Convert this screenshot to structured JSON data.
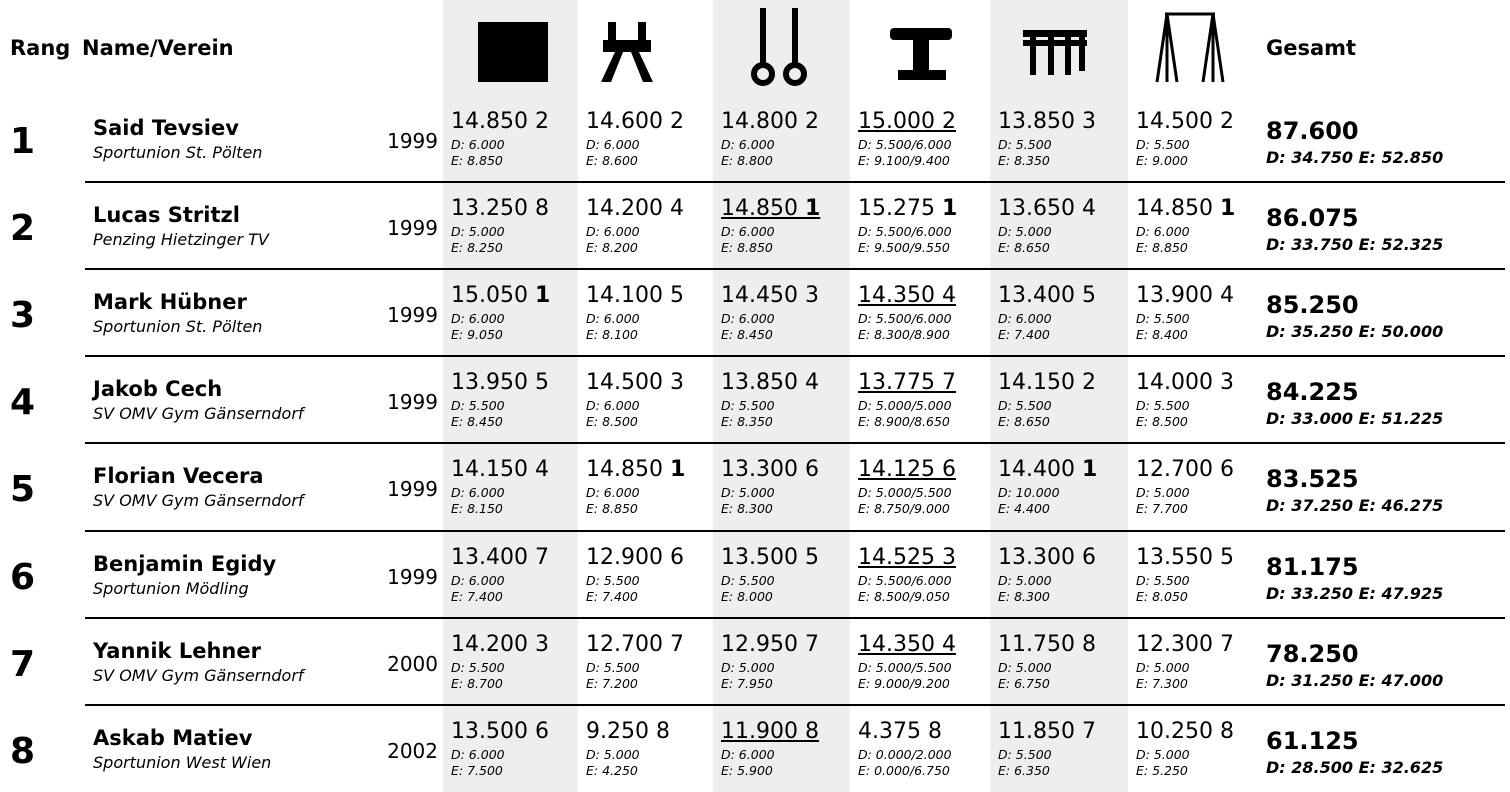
{
  "header": {
    "rank": "Rang",
    "name": "Name/Verein",
    "total": "Gesamt"
  },
  "rows": [
    {
      "rank": "1",
      "name": "Said Tevsiev",
      "club": "Sportunion St. Pölten",
      "year": "1999",
      "scores": [
        {
          "score": "14.850",
          "place": "2",
          "d": "D: 6.000",
          "e": "E: 8.850"
        },
        {
          "score": "14.600",
          "place": "2",
          "d": "D: 6.000",
          "e": "E: 8.600"
        },
        {
          "score": "14.800",
          "place": "2",
          "d": "D: 6.000",
          "e": "E: 8.800"
        },
        {
          "score": "15.000",
          "place": "2",
          "d": "D: 5.500/6.000",
          "e": "E: 9.100/9.400",
          "underline": true
        },
        {
          "score": "13.850",
          "place": "3",
          "d": "D: 5.500",
          "e": "E: 8.350"
        },
        {
          "score": "14.500",
          "place": "2",
          "d": "D: 5.500",
          "e": "E: 9.000"
        }
      ],
      "total": "87.600",
      "total_de": "D: 34.750 E: 52.850"
    },
    {
      "rank": "2",
      "name": "Lucas Stritzl",
      "club": "Penzing Hietzinger TV",
      "year": "1999",
      "scores": [
        {
          "score": "13.250",
          "place": "8",
          "d": "D: 5.000",
          "e": "E: 8.250"
        },
        {
          "score": "14.200",
          "place": "4",
          "d": "D: 6.000",
          "e": "E: 8.200"
        },
        {
          "score": "14.850",
          "place": "1",
          "d": "D: 6.000",
          "e": "E: 8.850",
          "underline": true,
          "bold": true
        },
        {
          "score": "15.275",
          "place": "1",
          "d": "D: 5.500/6.000",
          "e": "E: 9.500/9.550",
          "bold": true
        },
        {
          "score": "13.650",
          "place": "4",
          "d": "D: 5.000",
          "e": "E: 8.650"
        },
        {
          "score": "14.850",
          "place": "1",
          "d": "D: 6.000",
          "e": "E: 8.850",
          "bold": true
        }
      ],
      "total": "86.075",
      "total_de": "D: 33.750 E: 52.325"
    },
    {
      "rank": "3",
      "name": "Mark Hübner",
      "club": "Sportunion St. Pölten",
      "year": "1999",
      "scores": [
        {
          "score": "15.050",
          "place": "1",
          "d": "D: 6.000",
          "e": "E: 9.050",
          "bold": true
        },
        {
          "score": "14.100",
          "place": "5",
          "d": "D: 6.000",
          "e": "E: 8.100"
        },
        {
          "score": "14.450",
          "place": "3",
          "d": "D: 6.000",
          "e": "E: 8.450"
        },
        {
          "score": "14.350",
          "place": "4",
          "d": "D: 5.500/6.000",
          "e": "E: 8.300/8.900",
          "underline": true
        },
        {
          "score": "13.400",
          "place": "5",
          "d": "D: 6.000",
          "e": "E: 7.400"
        },
        {
          "score": "13.900",
          "place": "4",
          "d": "D: 5.500",
          "e": "E: 8.400"
        }
      ],
      "total": "85.250",
      "total_de": "D: 35.250 E: 50.000"
    },
    {
      "rank": "4",
      "name": "Jakob Cech",
      "club": "SV OMV Gym Gänserndorf",
      "year": "1999",
      "scores": [
        {
          "score": "13.950",
          "place": "5",
          "d": "D: 5.500",
          "e": "E: 8.450"
        },
        {
          "score": "14.500",
          "place": "3",
          "d": "D: 6.000",
          "e": "E: 8.500"
        },
        {
          "score": "13.850",
          "place": "4",
          "d": "D: 5.500",
          "e": "E: 8.350"
        },
        {
          "score": "13.775",
          "place": "7",
          "d": "D: 5.000/5.000",
          "e": "E: 8.900/8.650",
          "underline": true
        },
        {
          "score": "14.150",
          "place": "2",
          "d": "D: 5.500",
          "e": "E: 8.650"
        },
        {
          "score": "14.000",
          "place": "3",
          "d": "D: 5.500",
          "e": "E: 8.500"
        }
      ],
      "total": "84.225",
      "total_de": "D: 33.000 E: 51.225"
    },
    {
      "rank": "5",
      "name": "Florian Vecera",
      "club": "SV OMV Gym Gänserndorf",
      "year": "1999",
      "scores": [
        {
          "score": "14.150",
          "place": "4",
          "d": "D: 6.000",
          "e": "E: 8.150"
        },
        {
          "score": "14.850",
          "place": "1",
          "d": "D: 6.000",
          "e": "E: 8.850",
          "bold": true
        },
        {
          "score": "13.300",
          "place": "6",
          "d": "D: 5.000",
          "e": "E: 8.300"
        },
        {
          "score": "14.125",
          "place": "6",
          "d": "D: 5.000/5.500",
          "e": "E: 8.750/9.000",
          "underline": true
        },
        {
          "score": "14.400",
          "place": "1",
          "d": "D: 10.000",
          "e": "E: 4.400",
          "bold": true
        },
        {
          "score": "12.700",
          "place": "6",
          "d": "D: 5.000",
          "e": "E: 7.700"
        }
      ],
      "total": "83.525",
      "total_de": "D: 37.250 E: 46.275"
    },
    {
      "rank": "6",
      "name": "Benjamin Egidy",
      "club": "Sportunion Mödling",
      "year": "1999",
      "scores": [
        {
          "score": "13.400",
          "place": "7",
          "d": "D: 6.000",
          "e": "E: 7.400"
        },
        {
          "score": "12.900",
          "place": "6",
          "d": "D: 5.500",
          "e": "E: 7.400"
        },
        {
          "score": "13.500",
          "place": "5",
          "d": "D: 5.500",
          "e": "E: 8.000"
        },
        {
          "score": "14.525",
          "place": "3",
          "d": "D: 5.500/6.000",
          "e": "E: 8.500/9.050",
          "underline": true
        },
        {
          "score": "13.300",
          "place": "6",
          "d": "D: 5.000",
          "e": "E: 8.300"
        },
        {
          "score": "13.550",
          "place": "5",
          "d": "D: 5.500",
          "e": "E: 8.050"
        }
      ],
      "total": "81.175",
      "total_de": "D: 33.250 E: 47.925"
    },
    {
      "rank": "7",
      "name": "Yannik Lehner",
      "club": "SV OMV Gym Gänserndorf",
      "year": "2000",
      "scores": [
        {
          "score": "14.200",
          "place": "3",
          "d": "D: 5.500",
          "e": "E: 8.700"
        },
        {
          "score": "12.700",
          "place": "7",
          "d": "D: 5.500",
          "e": "E: 7.200"
        },
        {
          "score": "12.950",
          "place": "7",
          "d": "D: 5.000",
          "e": "E: 7.950"
        },
        {
          "score": "14.350",
          "place": "4",
          "d": "D: 5.000/5.500",
          "e": "E: 9.000/9.200",
          "underline": true
        },
        {
          "score": "11.750",
          "place": "8",
          "d": "D: 5.000",
          "e": "E: 6.750"
        },
        {
          "score": "12.300",
          "place": "7",
          "d": "D: 5.000",
          "e": "E: 7.300"
        }
      ],
      "total": "78.250",
      "total_de": "D: 31.250 E: 47.000"
    },
    {
      "rank": "8",
      "name": "Askab Matiev",
      "club": "Sportunion West Wien",
      "year": "2002",
      "scores": [
        {
          "score": "13.500",
          "place": "6",
          "d": "D: 6.000",
          "e": "E: 7.500"
        },
        {
          "score": "9.250",
          "place": "8",
          "d": "D: 5.000",
          "e": "E: 4.250"
        },
        {
          "score": "11.900",
          "place": "8",
          "d": "D: 6.000",
          "e": "E: 5.900",
          "underline": true
        },
        {
          "score": "4.375",
          "place": "8",
          "d": "D: 0.000/2.000",
          "e": "E: 0.000/6.750"
        },
        {
          "score": "11.850",
          "place": "7",
          "d": "D: 5.500",
          "e": "E: 6.350"
        },
        {
          "score": "10.250",
          "place": "8",
          "d": "D: 5.000",
          "e": "E: 5.250"
        }
      ],
      "total": "61.125",
      "total_de": "D: 28.500 E: 32.625"
    }
  ]
}
